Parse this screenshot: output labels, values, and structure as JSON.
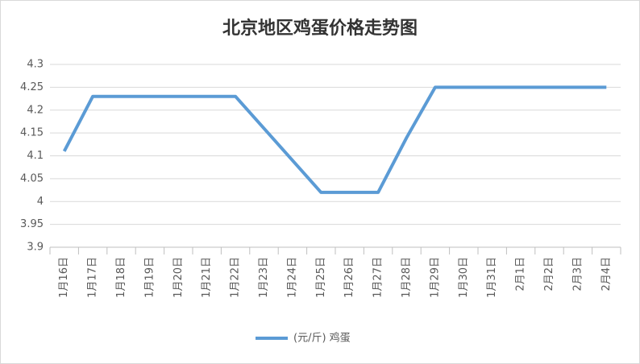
{
  "chart_data": {
    "type": "line",
    "title": "北京地区鸡蛋价格走势图",
    "categories": [
      "1月16日",
      "1月17日",
      "1月18日",
      "1月19日",
      "1月20日",
      "1月21日",
      "1月22日",
      "1月23日",
      "1月24日",
      "1月25日",
      "1月26日",
      "1月27日",
      "1月28日",
      "1月29日",
      "1月30日",
      "1月31日",
      "2月1日",
      "2月2日",
      "2月3日",
      "2月4日"
    ],
    "series": [
      {
        "name": "(元/斤) 鸡蛋",
        "color": "#5b9bd5",
        "values": [
          4.11,
          4.23,
          4.23,
          4.23,
          4.23,
          4.23,
          4.23,
          4.16,
          4.09,
          4.02,
          4.02,
          4.02,
          4.14,
          4.25,
          4.25,
          4.25,
          4.25,
          4.25,
          4.25,
          4.25
        ]
      }
    ],
    "ylim": [
      3.9,
      4.3
    ],
    "yticks": [
      3.9,
      3.95,
      4,
      4.05,
      4.1,
      4.15,
      4.2,
      4.25,
      4.3
    ],
    "grid": true,
    "legend": "bottom"
  }
}
